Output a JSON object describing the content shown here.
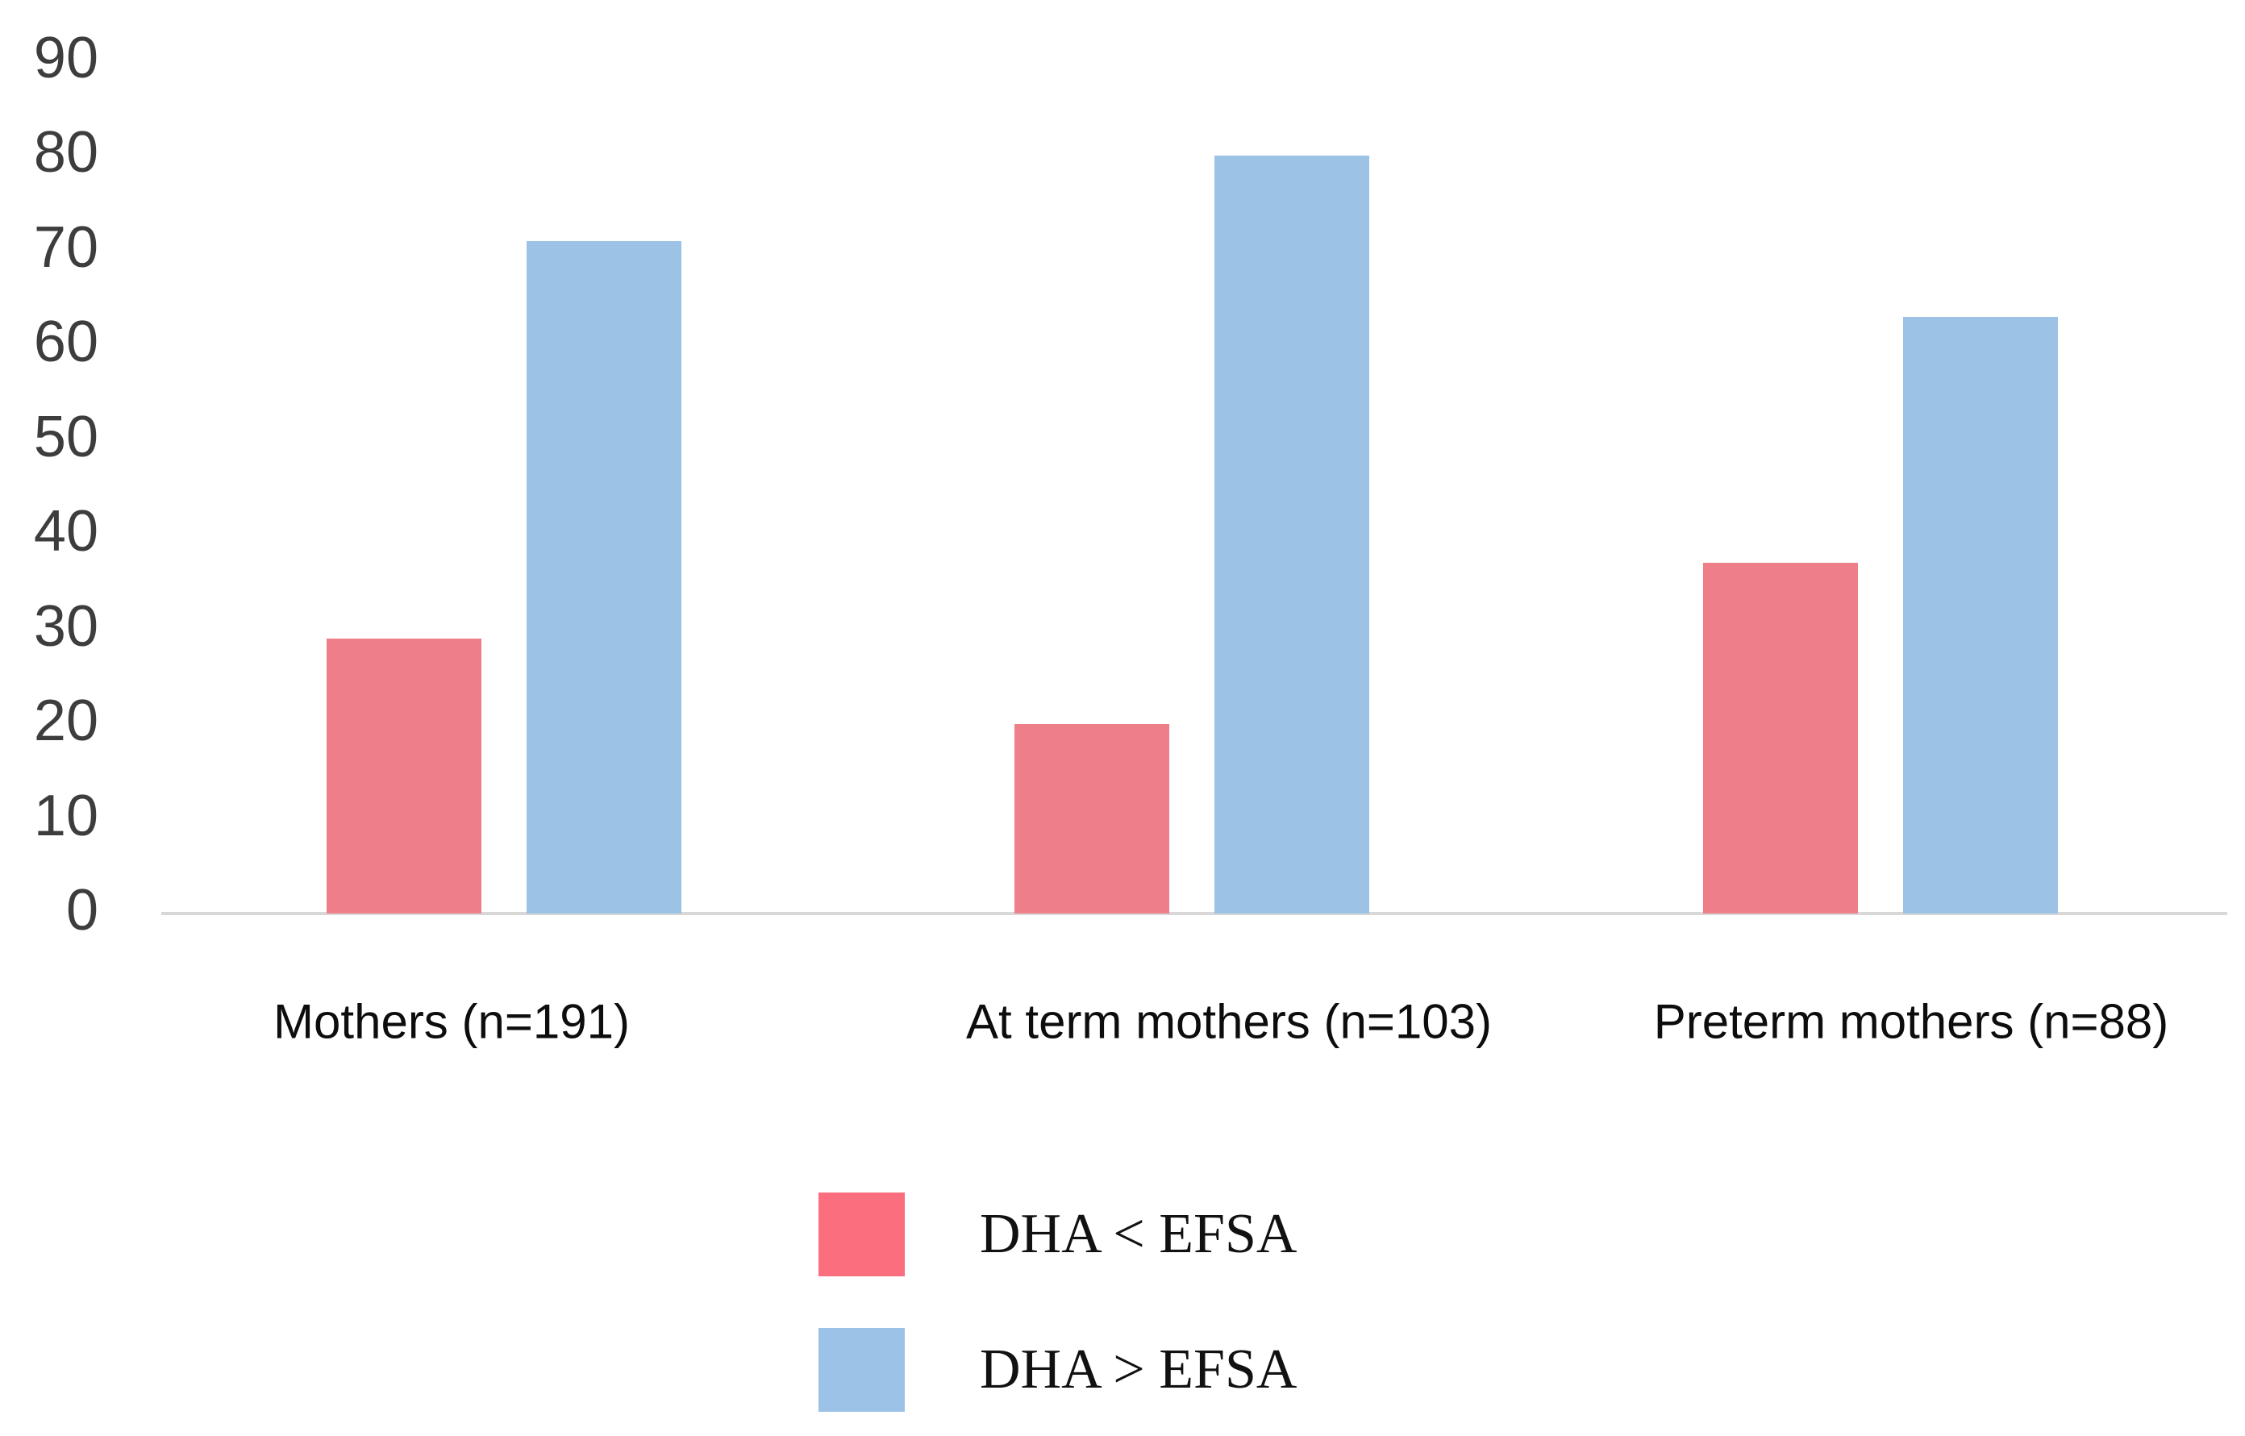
{
  "chart_data": {
    "type": "bar",
    "title": "",
    "xlabel": "",
    "ylabel": "",
    "categories": [
      "Mothers (n=191)",
      "At term mothers (n=103)",
      "Preterm mothers (n=88)"
    ],
    "series": [
      {
        "name": "DHA < EFSA",
        "color": "#ee7e88",
        "legend_color": "#fa6e7d",
        "values": [
          29,
          20,
          37
        ]
      },
      {
        "name": "DHA > EFSA",
        "color": "#9cc2e5",
        "legend_color": "#9cc3e7",
        "values": [
          71,
          80,
          63
        ]
      }
    ],
    "ylim": [
      0,
      90
    ],
    "yticks": [
      0,
      10,
      20,
      30,
      40,
      50,
      60,
      70,
      80,
      90
    ],
    "grid": false,
    "legend_position": "bottom"
  },
  "colors": {
    "background": "#ffffff",
    "axis_line": "#d8d8d8",
    "tick_label": "#3d3d3d",
    "category_label": "#0d0d0d",
    "legend_label": "#111111"
  }
}
